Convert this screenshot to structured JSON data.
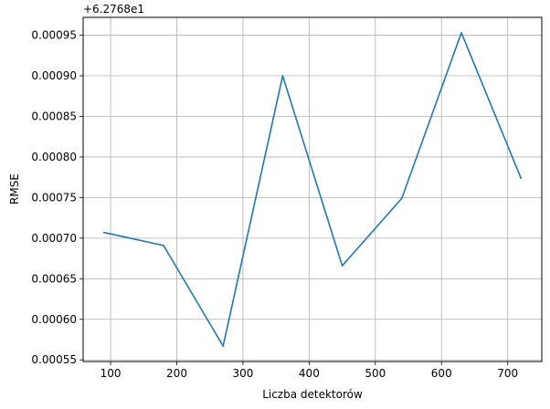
{
  "chart_data": {
    "type": "line",
    "title": "",
    "xlabel": "Liczba detektorów",
    "ylabel": "RMSE",
    "offset_label": "+6.2768e1",
    "x": [
      90,
      180,
      270,
      360,
      450,
      540,
      630,
      720
    ],
    "series": [
      {
        "name": "RMSE",
        "values": [
          0.000707,
          0.000691,
          0.000567,
          0.0009,
          0.000666,
          0.000749,
          0.000953,
          0.000774
        ],
        "color": "#1f77b4"
      }
    ],
    "xlim": [
      58.5,
      751.5
    ],
    "ylim": [
      0.000548,
      0.000972
    ],
    "xticks": [
      100,
      200,
      300,
      400,
      500,
      600,
      700
    ],
    "xtick_labels": [
      "100",
      "200",
      "300",
      "400",
      "500",
      "600",
      "700"
    ],
    "yticks": [
      0.00055,
      0.0006,
      0.00065,
      0.0007,
      0.00075,
      0.0008,
      0.00085,
      0.0009,
      0.00095
    ],
    "ytick_labels": [
      "0.00055",
      "0.00060",
      "0.00065",
      "0.00070",
      "0.00075",
      "0.00080",
      "0.00085",
      "0.00090",
      "0.00095"
    ],
    "grid": true,
    "grid_color": "#b0b0b0"
  }
}
